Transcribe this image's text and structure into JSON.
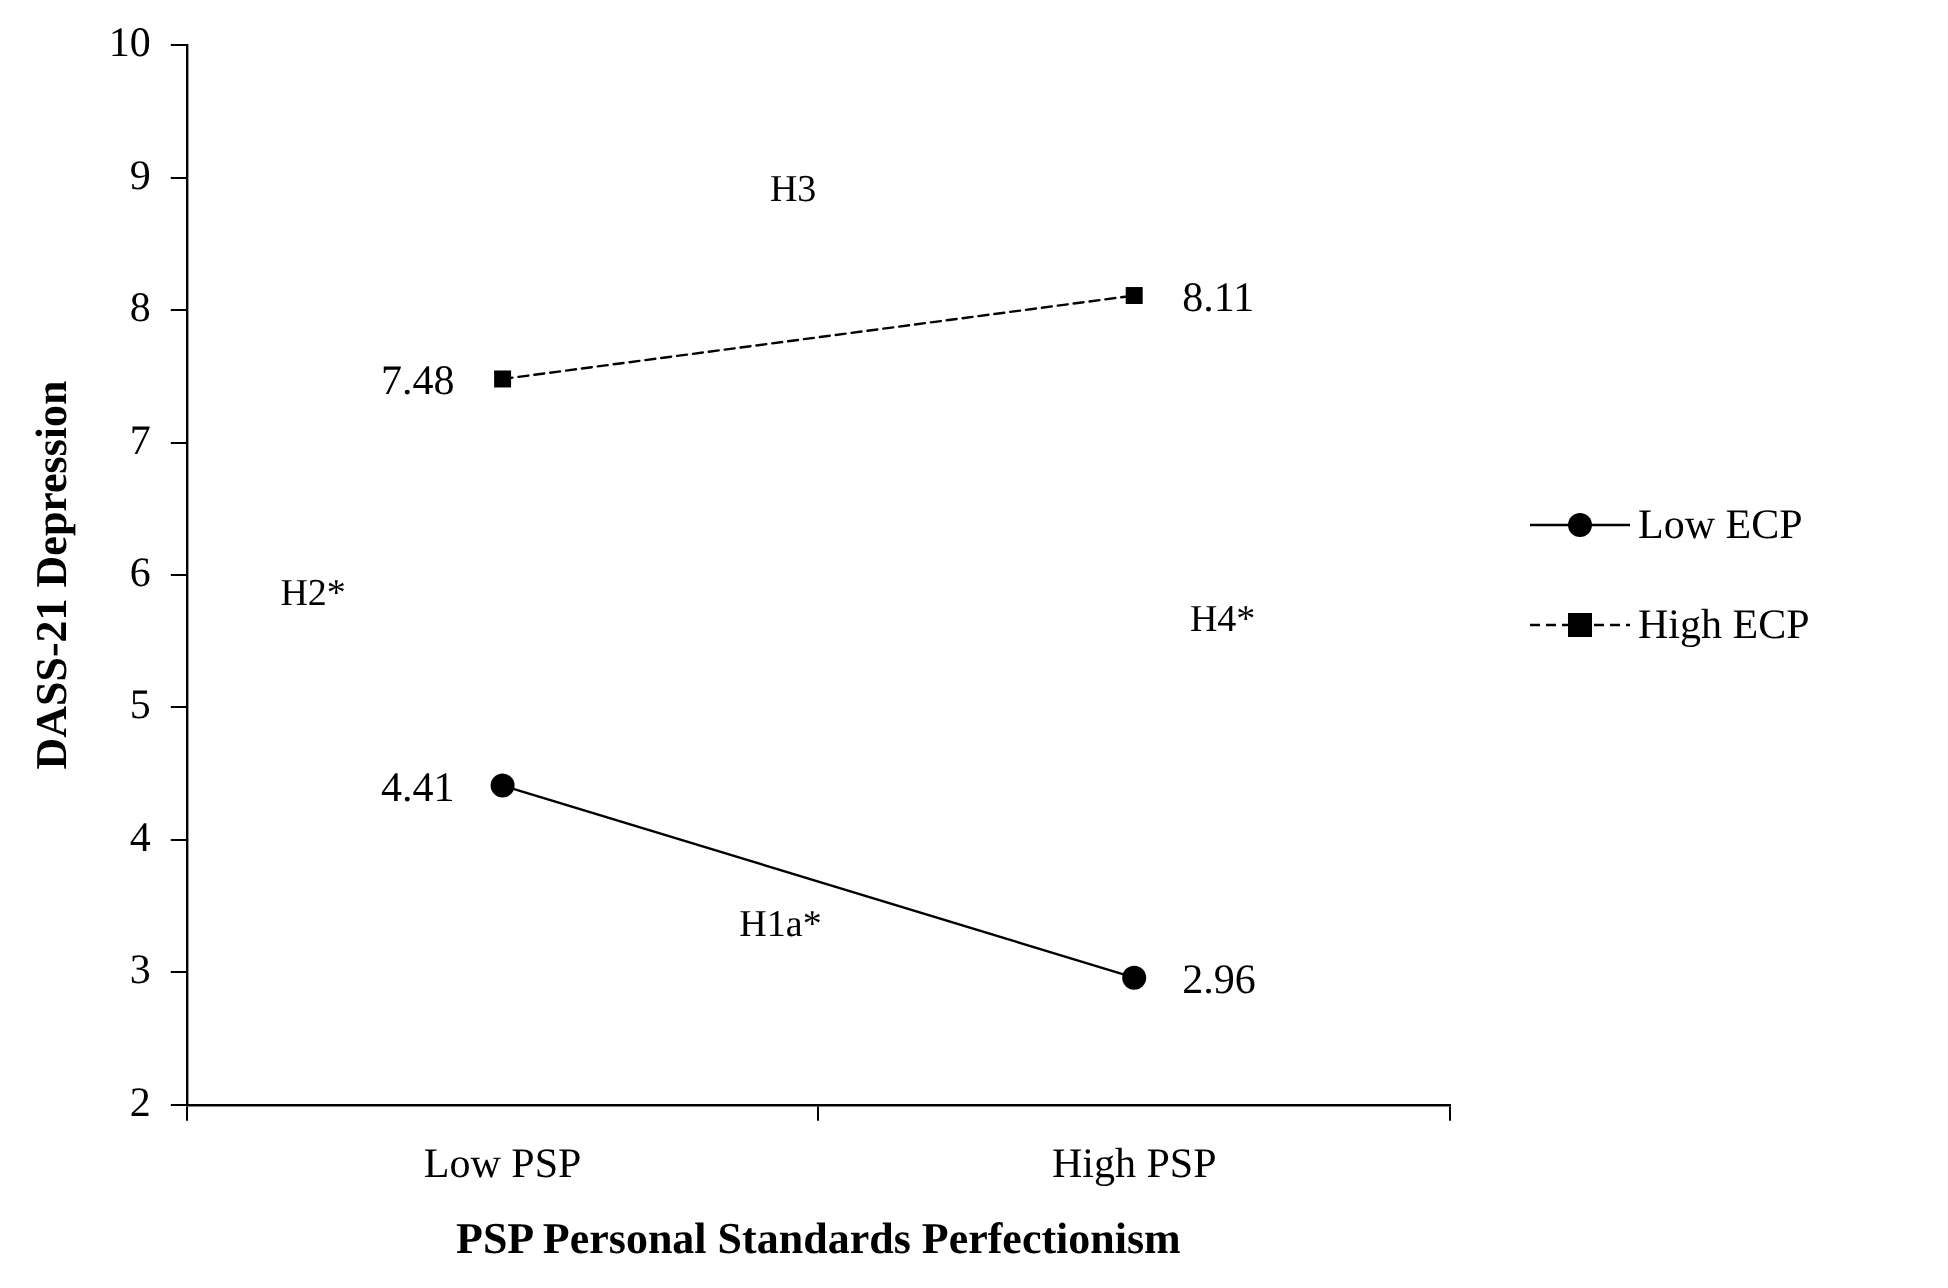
{
  "chart_data": {
    "type": "line",
    "xlabel": "PSP Personal Standards Perfectionism",
    "ylabel": "DASS-21 Depression",
    "categories": [
      "Low PSP",
      "High PSP"
    ],
    "series": [
      {
        "name": "Low ECP",
        "color": "#000000",
        "values": [
          4.41,
          2.96
        ],
        "marker": "circle",
        "line_style": "solid"
      },
      {
        "name": "High ECP",
        "color": "#000000",
        "values": [
          7.48,
          8.11
        ],
        "marker": "square",
        "line_style": "dashed"
      }
    ],
    "ylim": [
      2,
      10
    ],
    "yticks": [
      2,
      3,
      4,
      5,
      6,
      7,
      8,
      9,
      10
    ],
    "grid": false,
    "legend": "right",
    "data_labels": true,
    "annotations": [
      "H3",
      "H2*",
      "H4*",
      "H1a*"
    ]
  }
}
